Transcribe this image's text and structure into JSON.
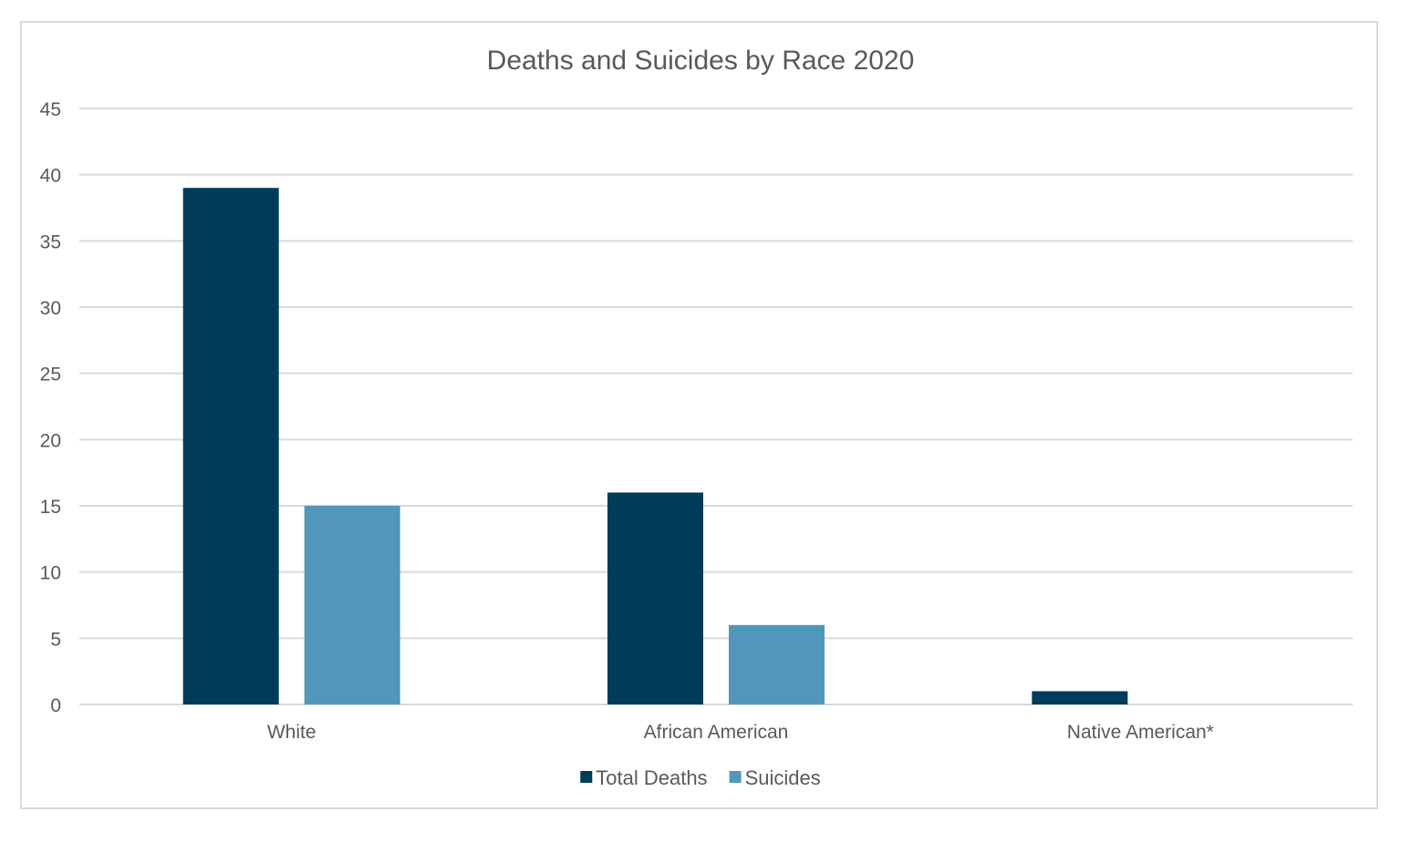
{
  "chart_data": {
    "type": "bar",
    "title": "Deaths and Suicides by Race 2020",
    "categories": [
      "White",
      "African American",
      "Native American*"
    ],
    "series": [
      {
        "name": "Total Deaths",
        "values": [
          39,
          16,
          1
        ],
        "color": "#003b5a"
      },
      {
        "name": "Suicides",
        "values": [
          15,
          6,
          0
        ],
        "color": "#5097bb"
      }
    ],
    "ylim": [
      0,
      45
    ],
    "yticks": [
      "0",
      "5",
      "10",
      "15",
      "20",
      "25",
      "30",
      "35",
      "40",
      "45"
    ],
    "xlabel": "",
    "ylabel": "",
    "grid": true,
    "legend": "bottom"
  }
}
